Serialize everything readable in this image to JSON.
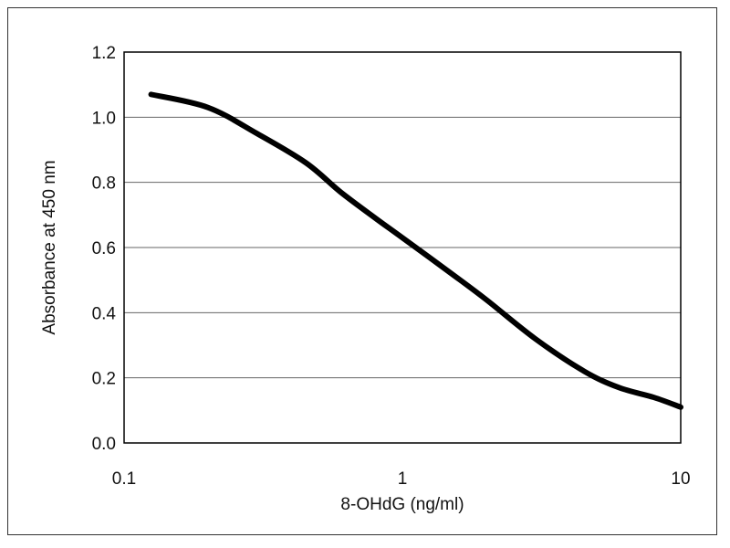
{
  "chart_data": {
    "type": "line",
    "title": "",
    "xlabel": "8-OHdG (ng/ml)",
    "ylabel": "Absorbance at 450 nm",
    "x_scale": "log",
    "xlim": [
      0.1,
      10
    ],
    "ylim": [
      0.0,
      1.2
    ],
    "x_ticks": [
      "0.1",
      "1",
      "10"
    ],
    "y_ticks": [
      "0.0",
      "0.2",
      "0.4",
      "0.6",
      "0.8",
      "1.0",
      "1.2"
    ],
    "grid": "horizontal",
    "legend": "none",
    "series": [
      {
        "color": "#000000",
        "x": [
          0.125,
          0.2,
          0.3,
          0.45,
          0.6,
          0.8,
          1.0,
          1.5,
          2.0,
          3.0,
          4.5,
          6.0,
          8.0,
          10.0
        ],
        "y": [
          1.07,
          1.03,
          0.95,
          0.86,
          0.77,
          0.69,
          0.63,
          0.52,
          0.44,
          0.32,
          0.22,
          0.17,
          0.14,
          0.11
        ]
      }
    ]
  }
}
